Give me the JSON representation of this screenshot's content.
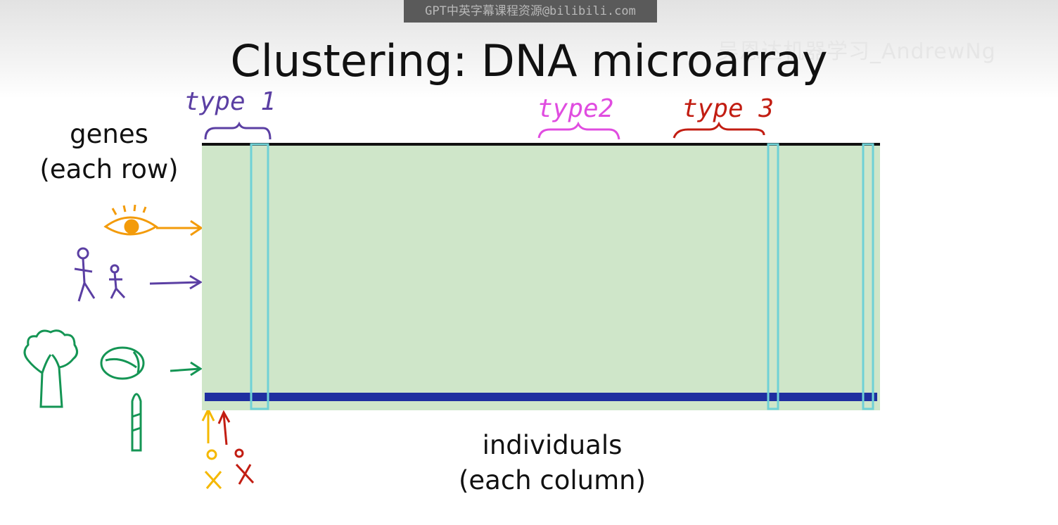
{
  "watermark": "GPT中英字幕课程资源@bilibili.com",
  "channel_watermark": "吴恩达机器学习_AndrewNg",
  "title": "Clustering: DNA microarray",
  "genes_label": {
    "line1": "genes",
    "line2": "(each row)"
  },
  "individuals_label": {
    "line1": "individuals",
    "line2": "(each column)"
  },
  "annotations": [
    {
      "text": "type 1",
      "color": "#5b3fa3"
    },
    {
      "text": "type2",
      "color": "#e04ce0"
    },
    {
      "text": "type 3",
      "color": "#c21d12"
    }
  ],
  "colors": {
    "expression_high": "#d7261c",
    "expression_low": "#23b032",
    "expression_neutral": "#1b1b1b",
    "marker_yellow": "#e8d23a",
    "marker_blue": "#1f2fa0",
    "sketch_orange": "#f39b0a",
    "sketch_purple": "#5b3fa3",
    "sketch_green": "#149554",
    "sketch_yellow": "#f5b800",
    "sketch_red": "#c21d12"
  },
  "icons": [
    "eye-icon",
    "stick-figure-icon",
    "broccoli-icon",
    "cabbage-icon",
    "asparagus-icon"
  ]
}
